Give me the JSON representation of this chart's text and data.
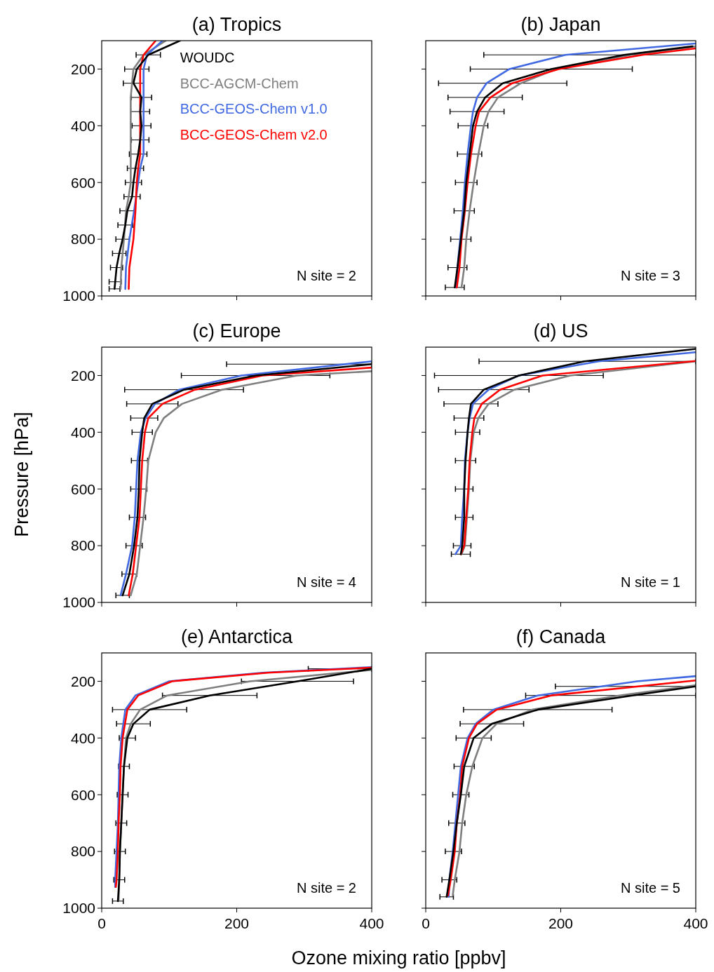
{
  "chart_data": [
    {
      "type": "line",
      "title": "(a) Tropics",
      "xlim": [
        0,
        400
      ],
      "xticks": [
        0,
        200,
        400
      ],
      "ylim": [
        1000,
        100
      ],
      "yticks": [
        200,
        400,
        600,
        800,
        1000
      ],
      "tick_labels": "y",
      "legend": "top right",
      "annotations": [
        "N site = 2"
      ],
      "series": [
        {
          "name": "WOUDC",
          "color": "#000000",
          "x": [
            116,
            69,
            52,
            47,
            59,
            57,
            59,
            57,
            54,
            50,
            47,
            45,
            38,
            35,
            31,
            26,
            22,
            20,
            19
          ],
          "values": [
            100,
            150,
            200,
            250,
            300,
            350,
            400,
            450,
            500,
            550,
            600,
            650,
            700,
            750,
            800,
            850,
            900,
            950,
            975
          ],
          "xerrors": [
            null,
            18,
            18,
            15,
            15,
            14,
            14,
            13,
            13,
            12,
            12,
            12,
            11,
            11,
            10,
            10,
            9,
            9,
            8
          ]
        },
        {
          "name": "BCC-AGCM-Chem",
          "color": "#7f7f7f",
          "x": [
            95,
            62,
            47,
            45,
            43,
            43,
            43,
            43,
            40,
            36,
            33,
            29,
            28
          ],
          "values": [
            100,
            150,
            200,
            250,
            300,
            400,
            500,
            600,
            650,
            700,
            800,
            900,
            975
          ]
        },
        {
          "name": "BCC-GEOS-Chem v1.0",
          "color": "#4169e1",
          "x": [
            90,
            67,
            62,
            62,
            62,
            62,
            57,
            54,
            48,
            41,
            36,
            35
          ],
          "values": [
            100,
            150,
            200,
            300,
            400,
            500,
            550,
            600,
            700,
            800,
            900,
            975
          ]
        },
        {
          "name": "BCC-GEOS-Chem v2.0",
          "color": "#ff0000",
          "x": [
            80,
            62,
            57,
            57,
            57,
            57,
            54,
            52,
            50,
            47,
            41,
            40
          ],
          "values": [
            100,
            150,
            200,
            300,
            400,
            500,
            550,
            600,
            700,
            800,
            900,
            975
          ]
        }
      ]
    },
    {
      "type": "line",
      "title": "(b) Japan",
      "xlim": [
        0,
        400
      ],
      "xticks": [
        0,
        200,
        400
      ],
      "ylim": [
        1000,
        100
      ],
      "yticks": [
        200,
        400,
        600,
        800,
        1000
      ],
      "tick_labels": false,
      "annotations": [
        "N site = 3"
      ],
      "series": [
        {
          "color": "#000000",
          "x": [
            395,
            294,
            186,
            114,
            88,
            76,
            70,
            65,
            60,
            57,
            52,
            47,
            43
          ],
          "values": [
            120,
            150,
            200,
            250,
            300,
            350,
            400,
            500,
            600,
            700,
            800,
            900,
            970
          ],
          "xerrors": [
            null,
            [
              86,
              400
            ],
            120,
            95,
            55,
            40,
            22,
            18,
            16,
            15,
            15,
            14,
            14
          ]
        },
        {
          "color": "#7f7f7f",
          "x": [
            400,
            304,
            193,
            141,
            107,
            93,
            86,
            78,
            71,
            65,
            60,
            57,
            53
          ],
          "values": [
            120,
            150,
            200,
            250,
            300,
            350,
            400,
            500,
            600,
            700,
            800,
            900,
            970
          ]
        },
        {
          "color": "#4169e1",
          "x": [
            400,
            207,
            124,
            90,
            76,
            70,
            67,
            62,
            58,
            55,
            51,
            47,
            45
          ],
          "values": [
            110,
            150,
            200,
            250,
            300,
            350,
            400,
            500,
            600,
            700,
            800,
            900,
            970
          ]
        },
        {
          "color": "#ff0000",
          "x": [
            400,
            321,
            197,
            128,
            96,
            79,
            74,
            67,
            62,
            58,
            53,
            50,
            46
          ],
          "values": [
            127,
            150,
            200,
            250,
            300,
            350,
            400,
            500,
            600,
            700,
            800,
            900,
            970
          ]
        }
      ]
    },
    {
      "type": "line",
      "title": "(c) Europe",
      "ylabel": "Pressure [hPa]",
      "xlim": [
        0,
        400
      ],
      "xticks": [
        0,
        200,
        400
      ],
      "ylim": [
        1000,
        100
      ],
      "yticks": [
        200,
        400,
        600,
        800,
        1000
      ],
      "tick_labels": "y",
      "annotations": [
        "N site = 4"
      ],
      "series": [
        {
          "color": "#000000",
          "x": [
            400,
            228,
            122,
            75,
            63,
            60,
            56,
            55,
            53,
            48,
            41,
            31
          ],
          "values": [
            160,
            200,
            250,
            300,
            350,
            400,
            500,
            600,
            700,
            800,
            900,
            975
          ],
          "xerrors": [
            [
              185,
              400
            ],
            110,
            88,
            38,
            20,
            15,
            12,
            12,
            12,
            12,
            11,
            10
          ]
        },
        {
          "color": "#7f7f7f",
          "x": [
            400,
            289,
            178,
            119,
            92,
            80,
            69,
            66,
            62,
            57,
            52,
            43
          ],
          "values": [
            185,
            200,
            250,
            300,
            350,
            400,
            500,
            600,
            700,
            800,
            900,
            975
          ]
        },
        {
          "color": "#4169e1",
          "x": [
            400,
            207,
            115,
            79,
            65,
            58,
            53,
            51,
            49,
            45,
            36,
            28
          ],
          "values": [
            150,
            200,
            250,
            300,
            350,
            400,
            500,
            600,
            700,
            800,
            900,
            975
          ]
        },
        {
          "color": "#ff0000",
          "x": [
            400,
            238,
            138,
            90,
            69,
            64,
            60,
            58,
            56,
            51,
            46,
            40
          ],
          "values": [
            172,
            200,
            250,
            300,
            350,
            400,
            500,
            600,
            700,
            800,
            900,
            975
          ]
        }
      ]
    },
    {
      "type": "line",
      "title": "(d) US",
      "xlim": [
        0,
        400
      ],
      "xticks": [
        0,
        200,
        400
      ],
      "ylim": [
        1000,
        100
      ],
      "yticks": [
        200,
        400,
        600,
        800,
        1000
      ],
      "tick_labels": false,
      "annotations": [
        "N site = 1"
      ],
      "series": [
        {
          "color": "#000000",
          "x": [
            400,
            235,
            138,
            86,
            67,
            64,
            62,
            59,
            57,
            57,
            54,
            52
          ],
          "values": [
            106,
            150,
            200,
            250,
            300,
            350,
            400,
            500,
            600,
            700,
            800,
            830
          ],
          "xerrors": [
            null,
            [
              79,
              400
            ],
            125,
            67,
            40,
            22,
            18,
            15,
            13,
            13,
            13,
            14
          ]
        },
        {
          "color": "#7f7f7f",
          "x": [
            400,
            214,
            131,
            93,
            78,
            71,
            66,
            64,
            61,
            58,
            53
          ],
          "values": [
            150,
            200,
            250,
            300,
            350,
            400,
            500,
            600,
            700,
            800,
            830
          ]
        },
        {
          "color": "#4169e1",
          "x": [
            400,
            256,
            138,
            93,
            70,
            65,
            62,
            58,
            57,
            54,
            52,
            44
          ],
          "values": [
            118,
            150,
            200,
            250,
            300,
            350,
            400,
            500,
            600,
            700,
            800,
            830
          ]
        },
        {
          "color": "#ff0000",
          "x": [
            400,
            173,
            110,
            83,
            72,
            69,
            65,
            63,
            60,
            57,
            52
          ],
          "values": [
            149,
            200,
            250,
            300,
            350,
            400,
            500,
            600,
            700,
            800,
            830
          ]
        }
      ]
    },
    {
      "type": "line",
      "title": "(e) Antarctica",
      "xlabel": "Ozone mixing ratio [ppbv]",
      "xlim": [
        0,
        400
      ],
      "xticks": [
        0,
        200,
        400
      ],
      "ylim": [
        1000,
        100
      ],
      "yticks": [
        200,
        400,
        600,
        800,
        1000
      ],
      "annotations": [
        "N site = 2"
      ],
      "series": [
        {
          "color": "#000000",
          "x": [
            400,
            290,
            160,
            71,
            47,
            38,
            33,
            31,
            29,
            27,
            26,
            24
          ],
          "values": [
            156,
            200,
            250,
            300,
            350,
            400,
            500,
            600,
            700,
            800,
            900,
            975
          ],
          "xerrors": [
            [
              306,
              400
            ],
            83,
            70,
            55,
            25,
            12,
            8,
            8,
            8,
            8,
            8,
            8
          ]
        },
        {
          "color": "#7f7f7f",
          "x": [
            400,
            220,
            97,
            57,
            43,
            36,
            33,
            31,
            29,
            27,
            26,
            25
          ],
          "values": [
            160,
            200,
            250,
            300,
            350,
            400,
            500,
            600,
            700,
            800,
            900,
            975
          ]
        },
        {
          "color": "#4169e1",
          "x": [
            400,
            238,
            100,
            50,
            35,
            29,
            26,
            25,
            24,
            22,
            20,
            20
          ],
          "values": [
            150,
            170,
            200,
            250,
            300,
            400,
            500,
            600,
            700,
            800,
            900,
            925
          ]
        },
        {
          "color": "#ff0000",
          "x": [
            400,
            246,
            104,
            54,
            38,
            31,
            28,
            27,
            25,
            24,
            22,
            21
          ],
          "values": [
            152,
            170,
            200,
            250,
            300,
            400,
            500,
            600,
            700,
            800,
            900,
            925
          ]
        }
      ]
    },
    {
      "type": "line",
      "title": "(f) Canada",
      "xlim": [
        0,
        400
      ],
      "xticks": [
        0,
        200,
        400
      ],
      "ylim": [
        1000,
        100
      ],
      "yticks": [
        200,
        400,
        600,
        800,
        1000
      ],
      "tick_labels": "x",
      "annotations": [
        "N site = 5"
      ],
      "series": [
        {
          "color": "#000000",
          "x": [
            400,
            306,
            166,
            98,
            71,
            57,
            52,
            46,
            41,
            35,
            31
          ],
          "values": [
            218,
            250,
            300,
            350,
            400,
            500,
            600,
            700,
            800,
            900,
            960
          ],
          "xerrors": [
            [
              192,
              400
            ],
            [
              148,
              400
            ],
            110,
            47,
            26,
            15,
            12,
            12,
            12,
            11,
            10
          ]
        },
        {
          "color": "#7f7f7f",
          "x": [
            400,
            287,
            158,
            105,
            84,
            69,
            60,
            54,
            50,
            43,
            40
          ],
          "values": [
            214,
            250,
            300,
            350,
            400,
            500,
            600,
            700,
            800,
            900,
            955
          ]
        },
        {
          "color": "#4169e1",
          "x": [
            400,
            313,
            166,
            100,
            74,
            62,
            52,
            48,
            44,
            40,
            35,
            34
          ],
          "values": [
            182,
            200,
            250,
            300,
            350,
            400,
            500,
            600,
            700,
            800,
            900,
            960
          ]
        },
        {
          "color": "#ff0000",
          "x": [
            400,
            186,
            105,
            76,
            64,
            54,
            51,
            46,
            43,
            37,
            33
          ],
          "values": [
            197,
            250,
            300,
            350,
            400,
            500,
            600,
            700,
            800,
            900,
            955
          ]
        }
      ]
    }
  ]
}
